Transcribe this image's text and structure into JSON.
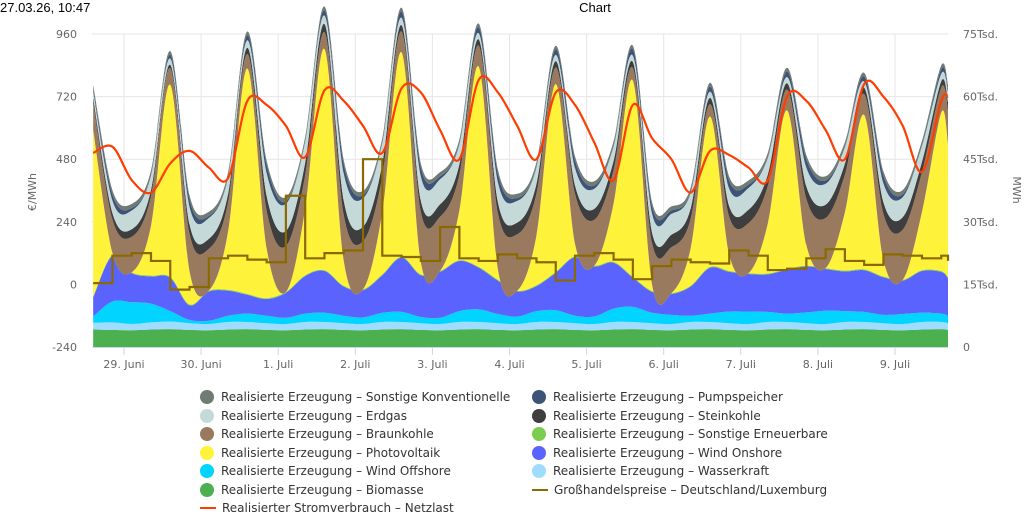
{
  "header": {
    "timestamp": "27.03.26, 10:47",
    "title": "Chart"
  },
  "colors": {
    "sonstige_konv": "#6f7b73",
    "erdgas": "#c5d9d9",
    "braunkohle": "#9a7a5e",
    "photovoltaik": "#fff23a",
    "wind_offshore": "#00d4ff",
    "biomasse": "#4caf50",
    "pumpspeicher": "#3d5377",
    "steinkohle": "#3e3e3e",
    "sonstige_ee": "#7ccc50",
    "wind_onshore": "#5b63ff",
    "wasserkraft": "#9fdcff",
    "netzlast": "#ff3d00",
    "preis": "#8a6a00"
  },
  "chart_data": {
    "type": "area",
    "title": "Chart",
    "x_unit": "days since 28. Juni 12:00 (sampled every 6 h)",
    "x_start": -0.4,
    "x_step": 0.25,
    "xlabels": [
      "29. Juni",
      "30. Juni",
      "1. Juli",
      "2. Juli",
      "3. Juli",
      "4. Juli",
      "5. Juli",
      "6. Juli",
      "7. Juli",
      "8. Juli",
      "9. Juli"
    ],
    "y_left": {
      "label": "€/MWh",
      "range": [
        -240,
        960
      ],
      "ticks": [
        "960",
        "720",
        "480",
        "240",
        "0",
        "-240"
      ]
    },
    "y_right": {
      "label": "MWh",
      "range": [
        0,
        75000
      ],
      "ticks": [
        "75Tsd.",
        "60Tsd.",
        "45Tsd.",
        "30Tsd.",
        "15Tsd.",
        "0"
      ]
    },
    "stack_order": [
      "biomasse",
      "wasserkraft",
      "wind_offshore",
      "wind_onshore",
      "sonstige_ee",
      "photovoltaik",
      "braunkohle",
      "steinkohle",
      "erdgas",
      "pumpspeicher",
      "sonstige_konv"
    ],
    "series": [
      {
        "key": "biomasse",
        "name": "Realisierte Erzeugung – Biomasse",
        "unit": "MWh",
        "values": [
          4200,
          4100,
          4000,
          4200,
          4300,
          4100,
          4000,
          4200,
          4300,
          4100,
          4000,
          4200,
          4300,
          4100,
          4000,
          4200,
          4300,
          4100,
          4000,
          4200,
          4300,
          4100,
          4000,
          4200,
          4300,
          4100,
          4000,
          4200,
          4300,
          4100,
          4000,
          4200,
          4300,
          4100,
          4000,
          4200,
          4300,
          4100,
          4000,
          4200,
          4300,
          4100,
          4000,
          4200,
          4300,
          4100
        ]
      },
      {
        "key": "wasserkraft",
        "name": "Realisierte Erzeugung – Wasserkraft",
        "unit": "MWh",
        "values": [
          1600,
          1800,
          1500,
          1700,
          1800,
          1600,
          1500,
          1800,
          1700,
          1600,
          1500,
          1800,
          1700,
          1600,
          1500,
          1800,
          1700,
          1600,
          1500,
          1800,
          1700,
          1600,
          1500,
          1800,
          1700,
          1600,
          1500,
          1800,
          1700,
          1600,
          1500,
          1800,
          1700,
          1600,
          1500,
          1800,
          1700,
          1600,
          1500,
          1800,
          1700,
          1600,
          1500,
          1800,
          1700,
          1600
        ]
      },
      {
        "key": "wind_offshore",
        "name": "Realisierte Erzeugung – Wind Offshore",
        "unit": "MWh",
        "values": [
          1500,
          5000,
          5200,
          4500,
          2500,
          800,
          800,
          1500,
          2000,
          1800,
          1500,
          2000,
          2200,
          1800,
          1600,
          2200,
          2400,
          1500,
          1500,
          2600,
          3000,
          2200,
          1800,
          2600,
          2800,
          1800,
          1800,
          3200,
          3600,
          2500,
          2200,
          1500,
          2000,
          2800,
          3000,
          2400,
          2000,
          2600,
          3200,
          2600,
          2400,
          2000,
          2400,
          2200,
          2000,
          1800
        ]
      },
      {
        "key": "wind_onshore",
        "name": "Realisierte Erzeugung – Wind Onshore",
        "unit": "MWh",
        "values": [
          4500,
          11000,
          7000,
          6500,
          8000,
          3500,
          7000,
          6000,
          4500,
          4000,
          6000,
          9000,
          10000,
          7000,
          6500,
          9000,
          13000,
          10000,
          11000,
          12000,
          10000,
          8000,
          6000,
          6000,
          9000,
          14000,
          12000,
          11000,
          7000,
          5000,
          5000,
          7000,
          11000,
          9500,
          9000,
          9000,
          10500,
          11000,
          10000,
          9500,
          10000,
          9000,
          8000,
          10000,
          10000,
          9000
        ]
      },
      {
        "key": "sonstige_ee",
        "name": "Realisierte Erzeugung – Sonstige Erneuerbare",
        "unit": "MWh",
        "values": [
          200,
          200,
          200,
          200,
          200,
          200,
          200,
          200,
          200,
          200,
          200,
          200,
          200,
          200,
          200,
          200,
          200,
          200,
          200,
          200,
          200,
          200,
          200,
          200,
          200,
          200,
          200,
          200,
          200,
          200,
          200,
          200,
          200,
          200,
          200,
          200,
          200,
          200,
          200,
          200,
          200,
          200,
          200,
          200,
          200,
          200
        ]
      },
      {
        "key": "photovoltaik",
        "name": "Realisierte Erzeugung – Photovoltaik",
        "unit": "MWh",
        "values": [
          40000,
          500,
          0,
          12000,
          46000,
          8000,
          0,
          14000,
          54000,
          12000,
          0,
          16000,
          53000,
          6000,
          0,
          15000,
          49000,
          3000,
          0,
          12000,
          48000,
          2500,
          0,
          12000,
          45000,
          3000,
          0,
          14000,
          47000,
          1500,
          0,
          9000,
          36000,
          4000,
          0,
          12000,
          38000,
          5000,
          0,
          14000,
          37000,
          4000,
          0,
          14000,
          38000,
          32000
        ]
      },
      {
        "key": "braunkohle",
        "name": "Realisierte Erzeugung – Braunkohle",
        "unit": "MWh",
        "values": [
          6500,
          8000,
          8500,
          7000,
          4000,
          9000,
          10000,
          7000,
          3500,
          9000,
          11000,
          8000,
          4000,
          11000,
          11500,
          8500,
          5000,
          12000,
          13000,
          8500,
          5000,
          13500,
          13500,
          10000,
          4000,
          12000,
          11000,
          8000,
          3000,
          10000,
          11000,
          7000,
          3000,
          9000,
          12000,
          9000,
          5000,
          11000,
          12000,
          9000,
          5000,
          11000,
          12000,
          9500,
          6000,
          8000
        ]
      },
      {
        "key": "steinkohle",
        "name": "Realisierte Erzeugung – Steinkohle",
        "unit": "MWh",
        "values": [
          1200,
          1500,
          1800,
          1500,
          800,
          2200,
          2400,
          2000,
          1500,
          3500,
          3600,
          3000,
          2000,
          3400,
          3500,
          3000,
          1500,
          2700,
          3000,
          2500,
          1500,
          2600,
          2800,
          2300,
          1500,
          2000,
          2600,
          2200,
          1500,
          2500,
          3000,
          2500,
          1500,
          2500,
          3200,
          2700,
          1500,
          3000,
          3200,
          2600,
          1500,
          2800,
          3000,
          2500,
          1500,
          2000
        ]
      },
      {
        "key": "erdgas",
        "name": "Realisierte Erzeugung – Erdgas",
        "unit": "MWh",
        "values": [
          1500,
          3000,
          4500,
          3500,
          1500,
          4200,
          5000,
          4000,
          1800,
          5500,
          6500,
          5000,
          2000,
          6500,
          6800,
          5000,
          1800,
          5800,
          6000,
          4800,
          1500,
          4800,
          5200,
          4000,
          1500,
          4200,
          4800,
          3500,
          1500,
          4500,
          5000,
          3800,
          1500,
          4200,
          5200,
          4000,
          1500,
          4500,
          5000,
          4000,
          1500,
          4500,
          4800,
          3800,
          1800,
          2500
        ]
      },
      {
        "key": "pumpspeicher",
        "name": "Realisierte Erzeugung – Pumpspeicher",
        "unit": "MWh",
        "values": [
          800,
          1500,
          600,
          300,
          900,
          1800,
          500,
          300,
          1200,
          2000,
          600,
          300,
          1300,
          2200,
          800,
          300,
          1500,
          2100,
          700,
          300,
          1400,
          2000,
          700,
          300,
          1300,
          1800,
          800,
          300,
          1500,
          1800,
          800,
          300,
          1200,
          1900,
          800,
          300,
          1300,
          2000,
          800,
          300,
          1200,
          1900,
          700,
          300,
          1100,
          800
        ]
      },
      {
        "key": "sonstige_konv",
        "name": "Realisierte Erzeugung – Sonstige Konventionelle",
        "unit": "MWh",
        "values": [
          800,
          1000,
          1000,
          900,
          900,
          1000,
          1000,
          900,
          900,
          1000,
          1000,
          900,
          900,
          1000,
          1000,
          900,
          900,
          1000,
          1000,
          900,
          900,
          1000,
          1000,
          900,
          900,
          1000,
          1000,
          900,
          900,
          1000,
          1000,
          900,
          900,
          1000,
          1000,
          900,
          900,
          1000,
          1000,
          900,
          900,
          1000,
          1000,
          900,
          900,
          900
        ]
      },
      {
        "key": "netzlast",
        "name": "Realisierter Stromverbrauch – Netzlast",
        "type": "line",
        "axis": "right",
        "unit": "MWh",
        "values": [
          46500,
          48000,
          40000,
          37000,
          44000,
          47000,
          43000,
          40500,
          59000,
          58000,
          53000,
          45500,
          61500,
          59000,
          53000,
          46500,
          62000,
          61000,
          52000,
          45000,
          64000,
          61000,
          53000,
          45000,
          61000,
          58000,
          49000,
          40000,
          58000,
          50000,
          45000,
          37000,
          47000,
          46000,
          43000,
          40000,
          60000,
          59000,
          52000,
          45000,
          63000,
          60000,
          53000,
          42000,
          59000,
          60000
        ]
      },
      {
        "key": "preis",
        "name": "Großhandelspreise – Deutschland/Luxemburg",
        "type": "step",
        "axis": "left",
        "unit": "€/MWh",
        "values": [
          5,
          110,
          120,
          90,
          -20,
          -10,
          100,
          110,
          95,
          85,
          340,
          100,
          120,
          130,
          480,
          110,
          105,
          90,
          220,
          100,
          90,
          115,
          100,
          85,
          15,
          110,
          120,
          95,
          20,
          70,
          95,
          85,
          80,
          130,
          110,
          55,
          60,
          100,
          135,
          90,
          75,
          115,
          110,
          100,
          110,
          90
        ]
      }
    ]
  },
  "legend": {
    "left": [
      {
        "key": "sonstige_konv",
        "label": "Realisierte Erzeugung – Sonstige Konventionelle",
        "symbol": "circle"
      },
      {
        "key": "erdgas",
        "label": "Realisierte Erzeugung – Erdgas",
        "symbol": "circle"
      },
      {
        "key": "braunkohle",
        "label": "Realisierte Erzeugung – Braunkohle",
        "symbol": "circle"
      },
      {
        "key": "photovoltaik",
        "label": "Realisierte Erzeugung – Photovoltaik",
        "symbol": "circle"
      },
      {
        "key": "wind_offshore",
        "label": "Realisierte Erzeugung – Wind Offshore",
        "symbol": "circle"
      },
      {
        "key": "biomasse",
        "label": "Realisierte Erzeugung – Biomasse",
        "symbol": "circle"
      },
      {
        "key": "netzlast",
        "label": "Realisierter Stromverbrauch – Netzlast",
        "symbol": "line"
      }
    ],
    "right": [
      {
        "key": "pumpspeicher",
        "label": "Realisierte Erzeugung – Pumpspeicher",
        "symbol": "circle"
      },
      {
        "key": "steinkohle",
        "label": "Realisierte Erzeugung – Steinkohle",
        "symbol": "circle"
      },
      {
        "key": "sonstige_ee",
        "label": "Realisierte Erzeugung – Sonstige Erneuerbare",
        "symbol": "circle"
      },
      {
        "key": "wind_onshore",
        "label": "Realisierte Erzeugung – Wind Onshore",
        "symbol": "circle"
      },
      {
        "key": "wasserkraft",
        "label": "Realisierte Erzeugung – Wasserkraft",
        "symbol": "circle"
      },
      {
        "key": "preis",
        "label": "Großhandelspreise – Deutschland/Luxemburg",
        "symbol": "line"
      }
    ]
  }
}
